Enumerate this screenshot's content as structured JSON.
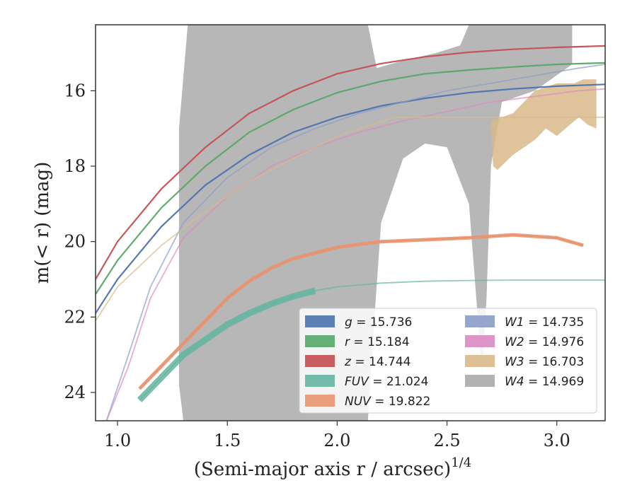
{
  "chart_data": {
    "type": "line",
    "xlabel": "(Semi-major axis r / arcsec)",
    "xlabel_exponent": "1/4",
    "ylabel": "m(< r) (mag)",
    "xlim": [
      0.9,
      3.22
    ],
    "ylim": [
      24.75,
      14.25
    ],
    "y_inverted": true,
    "x_ticks": [
      1.0,
      1.5,
      2.0,
      2.5,
      3.0
    ],
    "x_tick_labels": [
      "1.0",
      "1.5",
      "2.0",
      "2.5",
      "3.0"
    ],
    "y_ticks": [
      16,
      18,
      20,
      22,
      24
    ],
    "y_tick_labels": [
      "16",
      "18",
      "20",
      "22",
      "24"
    ],
    "grid": false,
    "legend_position": "lower-right",
    "series": [
      {
        "name": "g = 15.736",
        "label": "g",
        "value": "15.736",
        "color": "#4c72b0",
        "kind": "line",
        "x": [
          0.9,
          1.0,
          1.2,
          1.4,
          1.6,
          1.8,
          2.0,
          2.2,
          2.4,
          2.6,
          2.8,
          3.0,
          3.22
        ],
        "y": [
          21.9,
          21.0,
          19.6,
          18.5,
          17.7,
          17.1,
          16.7,
          16.4,
          16.2,
          16.05,
          15.95,
          15.88,
          15.83
        ]
      },
      {
        "name": "r = 15.184",
        "label": "r",
        "value": "15.184",
        "color": "#55a868",
        "kind": "line",
        "x": [
          0.9,
          1.0,
          1.2,
          1.4,
          1.6,
          1.8,
          2.0,
          2.2,
          2.4,
          2.6,
          2.8,
          3.0,
          3.22
        ],
        "y": [
          21.4,
          20.5,
          19.1,
          18.0,
          17.1,
          16.5,
          16.05,
          15.75,
          15.55,
          15.45,
          15.37,
          15.3,
          15.26
        ]
      },
      {
        "name": "z = 14.744",
        "label": "z",
        "value": "14.744",
        "color": "#c44e52",
        "kind": "line",
        "x": [
          0.9,
          1.0,
          1.2,
          1.4,
          1.6,
          1.8,
          2.0,
          2.2,
          2.4,
          2.6,
          2.8,
          3.0,
          3.22
        ],
        "y": [
          21.0,
          20.0,
          18.6,
          17.5,
          16.6,
          16.0,
          15.55,
          15.28,
          15.1,
          14.98,
          14.9,
          14.85,
          14.81
        ]
      },
      {
        "name": "FUV = 21.024",
        "label": "FUV",
        "value": "21.024",
        "color": "#64b5a0",
        "kind": "line",
        "x": [
          1.1,
          1.2,
          1.3,
          1.4,
          1.5,
          1.6,
          1.7,
          1.8,
          1.9,
          2.0,
          2.2,
          2.4,
          2.6,
          2.8,
          3.0,
          3.22
        ],
        "y": [
          24.2,
          23.6,
          23.0,
          22.6,
          22.2,
          21.9,
          21.65,
          21.45,
          21.3,
          21.2,
          21.1,
          21.05,
          21.03,
          21.02,
          21.02,
          21.02
        ]
      },
      {
        "name": "NUV = 19.822",
        "label": "NUV",
        "value": "19.822",
        "color": "#e8936f",
        "kind": "line",
        "x": [
          1.1,
          1.2,
          1.3,
          1.4,
          1.5,
          1.6,
          1.7,
          1.8,
          1.9,
          2.0,
          2.2,
          2.4,
          2.6,
          2.8,
          3.0,
          3.12
        ],
        "y": [
          23.9,
          23.3,
          22.7,
          22.1,
          21.5,
          21.05,
          20.7,
          20.45,
          20.3,
          20.15,
          20.0,
          19.95,
          19.9,
          19.82,
          19.9,
          20.1
        ]
      },
      {
        "name": "W1 = 14.735",
        "label": "W1",
        "value": "14.735",
        "color": "#8c9cc7",
        "kind": "line",
        "x": [
          0.95,
          1.05,
          1.15,
          1.3,
          1.5,
          1.7,
          1.9,
          2.1,
          2.3,
          2.5,
          2.7,
          2.9,
          3.1,
          3.22
        ],
        "y": [
          24.75,
          23.0,
          21.2,
          19.5,
          18.3,
          17.5,
          17.0,
          16.6,
          16.3,
          16.0,
          15.8,
          15.6,
          15.4,
          15.3
        ]
      },
      {
        "name": "W2 = 14.976",
        "label": "W2",
        "value": "14.976",
        "color": "#da8bc3",
        "kind": "line",
        "x": [
          0.95,
          1.05,
          1.15,
          1.3,
          1.5,
          1.7,
          1.9,
          2.1,
          2.3,
          2.5,
          2.7,
          2.9,
          3.1,
          3.22
        ],
        "y": [
          24.75,
          23.3,
          21.5,
          19.9,
          18.8,
          18.0,
          17.5,
          17.1,
          16.8,
          16.55,
          16.3,
          16.15,
          16.0,
          15.95
        ]
      },
      {
        "name": "W3 = 16.703",
        "label": "W3",
        "value": "16.703",
        "color": "#d9b98a",
        "kind": "line",
        "x": [
          0.9,
          1.0,
          1.2,
          1.4,
          1.6,
          1.8,
          2.0,
          2.26,
          2.5,
          2.8,
          3.0,
          3.22
        ],
        "y": [
          22.1,
          21.2,
          20.1,
          19.2,
          18.4,
          17.8,
          17.2,
          16.703,
          16.703,
          16.703,
          16.703,
          16.703
        ]
      },
      {
        "name": "W4 = 14.969",
        "label": "W4",
        "value": "14.969",
        "color": "#aaaaaa",
        "kind": "band"
      }
    ]
  }
}
